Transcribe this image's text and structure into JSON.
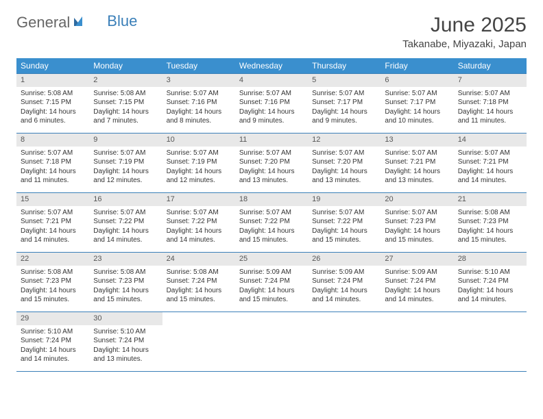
{
  "logo": {
    "text1": "General",
    "text2": "Blue"
  },
  "title": "June 2025",
  "location": "Takanabe, Miyazaki, Japan",
  "colors": {
    "header_bg": "#3a8fce",
    "header_text": "#ffffff",
    "border": "#3a7fb8",
    "daynum_bg": "#e8e8e8",
    "text": "#333333",
    "logo_gray": "#666666",
    "logo_blue": "#3a7fb8"
  },
  "weekdays": [
    "Sunday",
    "Monday",
    "Tuesday",
    "Wednesday",
    "Thursday",
    "Friday",
    "Saturday"
  ],
  "weeks": [
    [
      {
        "n": "1",
        "sunrise": "Sunrise: 5:08 AM",
        "sunset": "Sunset: 7:15 PM",
        "day1": "Daylight: 14 hours",
        "day2": "and 6 minutes."
      },
      {
        "n": "2",
        "sunrise": "Sunrise: 5:08 AM",
        "sunset": "Sunset: 7:15 PM",
        "day1": "Daylight: 14 hours",
        "day2": "and 7 minutes."
      },
      {
        "n": "3",
        "sunrise": "Sunrise: 5:07 AM",
        "sunset": "Sunset: 7:16 PM",
        "day1": "Daylight: 14 hours",
        "day2": "and 8 minutes."
      },
      {
        "n": "4",
        "sunrise": "Sunrise: 5:07 AM",
        "sunset": "Sunset: 7:16 PM",
        "day1": "Daylight: 14 hours",
        "day2": "and 9 minutes."
      },
      {
        "n": "5",
        "sunrise": "Sunrise: 5:07 AM",
        "sunset": "Sunset: 7:17 PM",
        "day1": "Daylight: 14 hours",
        "day2": "and 9 minutes."
      },
      {
        "n": "6",
        "sunrise": "Sunrise: 5:07 AM",
        "sunset": "Sunset: 7:17 PM",
        "day1": "Daylight: 14 hours",
        "day2": "and 10 minutes."
      },
      {
        "n": "7",
        "sunrise": "Sunrise: 5:07 AM",
        "sunset": "Sunset: 7:18 PM",
        "day1": "Daylight: 14 hours",
        "day2": "and 11 minutes."
      }
    ],
    [
      {
        "n": "8",
        "sunrise": "Sunrise: 5:07 AM",
        "sunset": "Sunset: 7:18 PM",
        "day1": "Daylight: 14 hours",
        "day2": "and 11 minutes."
      },
      {
        "n": "9",
        "sunrise": "Sunrise: 5:07 AM",
        "sunset": "Sunset: 7:19 PM",
        "day1": "Daylight: 14 hours",
        "day2": "and 12 minutes."
      },
      {
        "n": "10",
        "sunrise": "Sunrise: 5:07 AM",
        "sunset": "Sunset: 7:19 PM",
        "day1": "Daylight: 14 hours",
        "day2": "and 12 minutes."
      },
      {
        "n": "11",
        "sunrise": "Sunrise: 5:07 AM",
        "sunset": "Sunset: 7:20 PM",
        "day1": "Daylight: 14 hours",
        "day2": "and 13 minutes."
      },
      {
        "n": "12",
        "sunrise": "Sunrise: 5:07 AM",
        "sunset": "Sunset: 7:20 PM",
        "day1": "Daylight: 14 hours",
        "day2": "and 13 minutes."
      },
      {
        "n": "13",
        "sunrise": "Sunrise: 5:07 AM",
        "sunset": "Sunset: 7:21 PM",
        "day1": "Daylight: 14 hours",
        "day2": "and 13 minutes."
      },
      {
        "n": "14",
        "sunrise": "Sunrise: 5:07 AM",
        "sunset": "Sunset: 7:21 PM",
        "day1": "Daylight: 14 hours",
        "day2": "and 14 minutes."
      }
    ],
    [
      {
        "n": "15",
        "sunrise": "Sunrise: 5:07 AM",
        "sunset": "Sunset: 7:21 PM",
        "day1": "Daylight: 14 hours",
        "day2": "and 14 minutes."
      },
      {
        "n": "16",
        "sunrise": "Sunrise: 5:07 AM",
        "sunset": "Sunset: 7:22 PM",
        "day1": "Daylight: 14 hours",
        "day2": "and 14 minutes."
      },
      {
        "n": "17",
        "sunrise": "Sunrise: 5:07 AM",
        "sunset": "Sunset: 7:22 PM",
        "day1": "Daylight: 14 hours",
        "day2": "and 14 minutes."
      },
      {
        "n": "18",
        "sunrise": "Sunrise: 5:07 AM",
        "sunset": "Sunset: 7:22 PM",
        "day1": "Daylight: 14 hours",
        "day2": "and 15 minutes."
      },
      {
        "n": "19",
        "sunrise": "Sunrise: 5:07 AM",
        "sunset": "Sunset: 7:22 PM",
        "day1": "Daylight: 14 hours",
        "day2": "and 15 minutes."
      },
      {
        "n": "20",
        "sunrise": "Sunrise: 5:07 AM",
        "sunset": "Sunset: 7:23 PM",
        "day1": "Daylight: 14 hours",
        "day2": "and 15 minutes."
      },
      {
        "n": "21",
        "sunrise": "Sunrise: 5:08 AM",
        "sunset": "Sunset: 7:23 PM",
        "day1": "Daylight: 14 hours",
        "day2": "and 15 minutes."
      }
    ],
    [
      {
        "n": "22",
        "sunrise": "Sunrise: 5:08 AM",
        "sunset": "Sunset: 7:23 PM",
        "day1": "Daylight: 14 hours",
        "day2": "and 15 minutes."
      },
      {
        "n": "23",
        "sunrise": "Sunrise: 5:08 AM",
        "sunset": "Sunset: 7:23 PM",
        "day1": "Daylight: 14 hours",
        "day2": "and 15 minutes."
      },
      {
        "n": "24",
        "sunrise": "Sunrise: 5:08 AM",
        "sunset": "Sunset: 7:24 PM",
        "day1": "Daylight: 14 hours",
        "day2": "and 15 minutes."
      },
      {
        "n": "25",
        "sunrise": "Sunrise: 5:09 AM",
        "sunset": "Sunset: 7:24 PM",
        "day1": "Daylight: 14 hours",
        "day2": "and 15 minutes."
      },
      {
        "n": "26",
        "sunrise": "Sunrise: 5:09 AM",
        "sunset": "Sunset: 7:24 PM",
        "day1": "Daylight: 14 hours",
        "day2": "and 14 minutes."
      },
      {
        "n": "27",
        "sunrise": "Sunrise: 5:09 AM",
        "sunset": "Sunset: 7:24 PM",
        "day1": "Daylight: 14 hours",
        "day2": "and 14 minutes."
      },
      {
        "n": "28",
        "sunrise": "Sunrise: 5:10 AM",
        "sunset": "Sunset: 7:24 PM",
        "day1": "Daylight: 14 hours",
        "day2": "and 14 minutes."
      }
    ],
    [
      {
        "n": "29",
        "sunrise": "Sunrise: 5:10 AM",
        "sunset": "Sunset: 7:24 PM",
        "day1": "Daylight: 14 hours",
        "day2": "and 14 minutes."
      },
      {
        "n": "30",
        "sunrise": "Sunrise: 5:10 AM",
        "sunset": "Sunset: 7:24 PM",
        "day1": "Daylight: 14 hours",
        "day2": "and 13 minutes."
      },
      null,
      null,
      null,
      null,
      null
    ]
  ]
}
